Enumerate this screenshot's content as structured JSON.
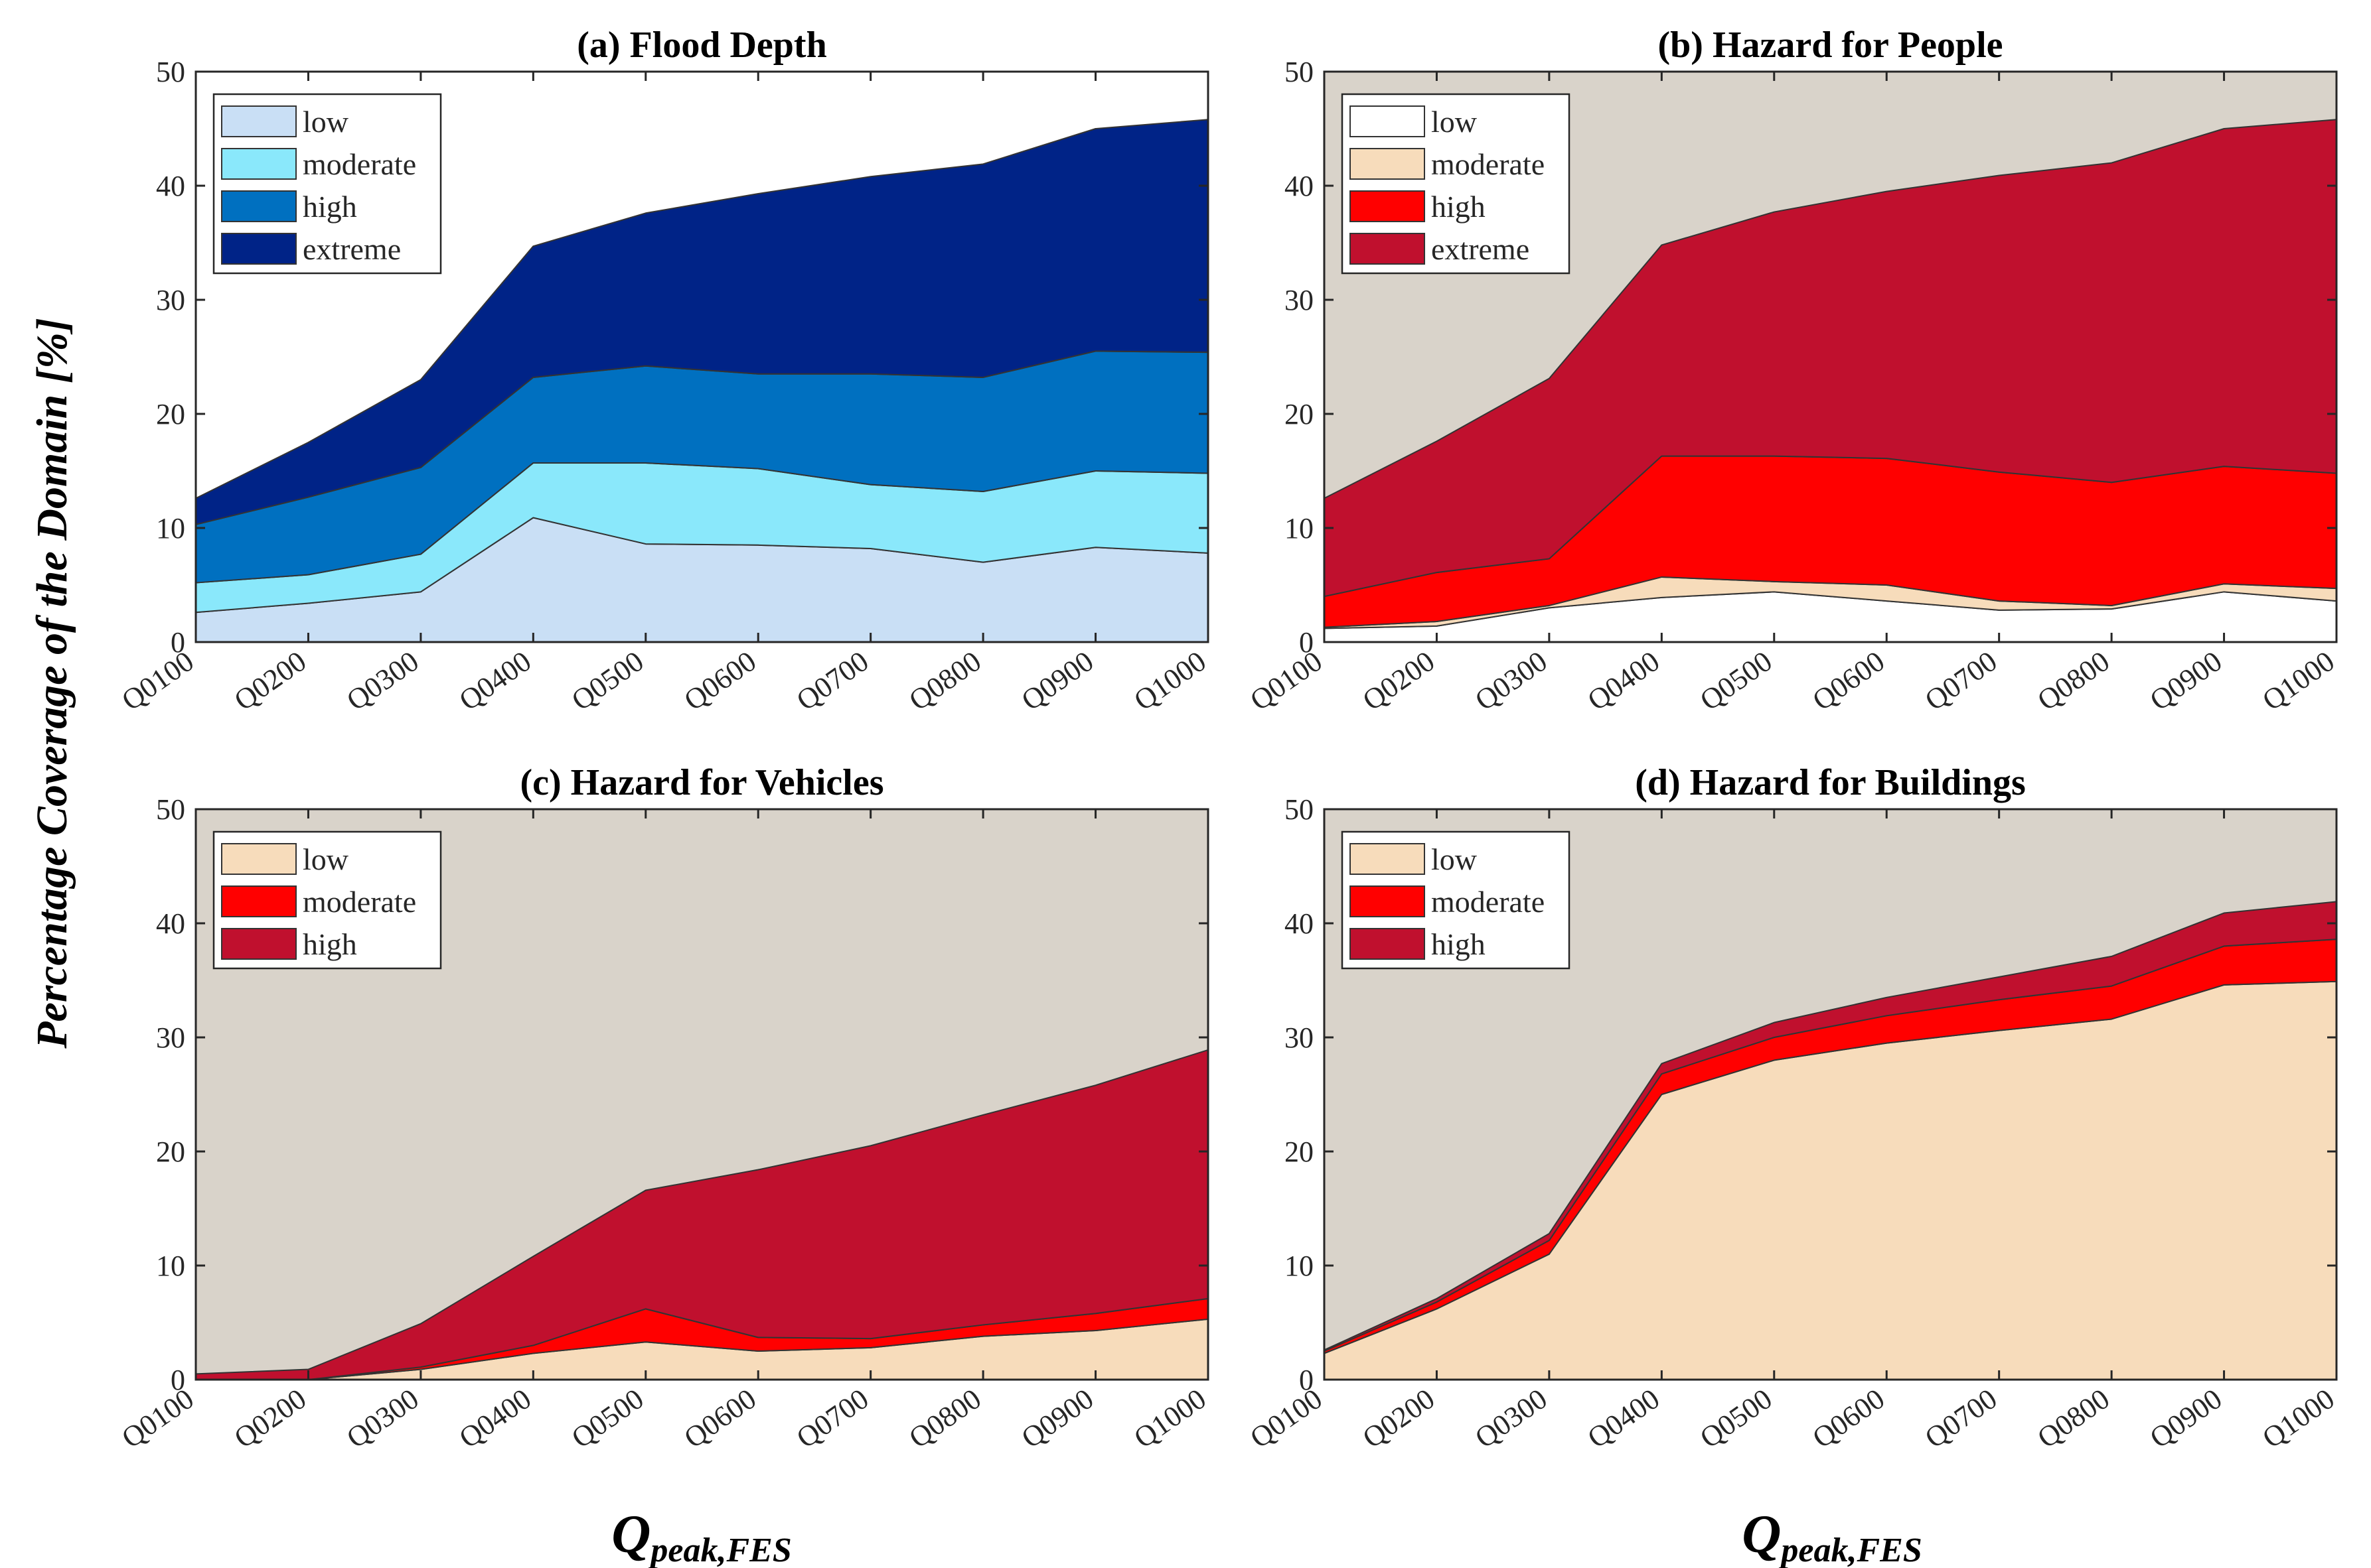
{
  "figure": {
    "ylabel": "Percentage Coverage of the Domain [%]",
    "xlabel_main": "Q",
    "xlabel_sub": "peak,FES"
  },
  "chart_data": [
    {
      "type": "area",
      "title": "(a) Flood Depth",
      "categories": [
        "Q0100",
        "Q0200",
        "Q0300",
        "Q0400",
        "Q0500",
        "Q0600",
        "Q0700",
        "Q0800",
        "Q0900",
        "Q1000"
      ],
      "ylim": [
        0,
        50
      ],
      "yticks": [
        0,
        10,
        20,
        30,
        40,
        50
      ],
      "background": "#ffffff",
      "legend_position": "top-left",
      "series": [
        {
          "name": "low",
          "color": "#c9dff5",
          "values": [
            2.6,
            3.4,
            4.4,
            10.9,
            8.6,
            8.5,
            8.2,
            7.0,
            8.3,
            7.8
          ]
        },
        {
          "name": "moderate",
          "color": "#8ae8fb",
          "values": [
            2.6,
            2.5,
            3.3,
            4.8,
            7.1,
            6.7,
            5.6,
            6.2,
            6.7,
            7.0
          ]
        },
        {
          "name": "high",
          "color": "#0070c0",
          "values": [
            5.1,
            6.8,
            7.6,
            7.5,
            8.5,
            8.3,
            9.7,
            10.0,
            10.5,
            10.6
          ]
        },
        {
          "name": "extreme",
          "color": "#002387",
          "values": [
            2.3,
            4.8,
            7.7,
            11.5,
            13.4,
            15.8,
            17.3,
            18.7,
            19.5,
            20.4
          ]
        }
      ]
    },
    {
      "type": "area",
      "title": "(b) Hazard for People",
      "categories": [
        "Q0100",
        "Q0200",
        "Q0300",
        "Q0400",
        "Q0500",
        "Q0600",
        "Q0700",
        "Q0800",
        "Q0900",
        "Q1000"
      ],
      "ylim": [
        0,
        50
      ],
      "yticks": [
        0,
        10,
        20,
        30,
        40,
        50
      ],
      "background": "#d9d3ca",
      "legend_position": "top-left",
      "series": [
        {
          "name": "low",
          "color": "#ffffff",
          "values": [
            1.2,
            1.4,
            3.0,
            3.9,
            4.4,
            3.6,
            2.8,
            2.9,
            4.4,
            3.6
          ]
        },
        {
          "name": "moderate",
          "color": "#f7dcbb",
          "values": [
            0.1,
            0.4,
            0.2,
            1.8,
            0.9,
            1.4,
            0.8,
            0.3,
            0.7,
            1.1
          ]
        },
        {
          "name": "high",
          "color": "#ff0000",
          "values": [
            2.7,
            4.3,
            4.1,
            10.6,
            11.0,
            11.1,
            11.3,
            10.8,
            10.3,
            10.1
          ]
        },
        {
          "name": "extreme",
          "color": "#c0102e",
          "values": [
            8.6,
            11.5,
            15.8,
            18.5,
            21.4,
            23.4,
            26.0,
            28.0,
            29.6,
            31.0
          ]
        }
      ]
    },
    {
      "type": "area",
      "title": "(c) Hazard for Vehicles",
      "categories": [
        "Q0100",
        "Q0200",
        "Q0300",
        "Q0400",
        "Q0500",
        "Q0600",
        "Q0700",
        "Q0800",
        "Q0900",
        "Q1000"
      ],
      "ylim": [
        0,
        50
      ],
      "yticks": [
        0,
        10,
        20,
        30,
        40,
        50
      ],
      "background": "#d9d3ca",
      "legend_position": "top-left",
      "series": [
        {
          "name": "low",
          "color": "#f7dcbb",
          "values": [
            0.0,
            0.0,
            0.9,
            2.3,
            3.3,
            2.5,
            2.8,
            3.8,
            4.3,
            5.3
          ]
        },
        {
          "name": "moderate",
          "color": "#ff0000",
          "values": [
            0.0,
            0.0,
            0.2,
            0.7,
            2.9,
            1.2,
            0.8,
            1.0,
            1.5,
            1.8
          ]
        },
        {
          "name": "high",
          "color": "#c0102e",
          "values": [
            0.5,
            0.9,
            3.8,
            7.8,
            10.4,
            14.7,
            16.9,
            18.4,
            20.0,
            21.8
          ]
        }
      ]
    },
    {
      "type": "area",
      "title": "(d) Hazard for Buildings",
      "categories": [
        "Q0100",
        "Q0200",
        "Q0300",
        "Q0400",
        "Q0500",
        "Q0600",
        "Q0700",
        "Q0800",
        "Q0900",
        "Q1000"
      ],
      "ylim": [
        0,
        50
      ],
      "yticks": [
        0,
        10,
        20,
        30,
        40,
        50
      ],
      "background": "#d9d3ca",
      "legend_position": "top-left",
      "series": [
        {
          "name": "low",
          "color": "#f7dcbb",
          "values": [
            2.3,
            6.2,
            11.0,
            25.0,
            28.0,
            29.5,
            30.6,
            31.6,
            34.6,
            34.9
          ]
        },
        {
          "name": "moderate",
          "color": "#ff0000",
          "values": [
            0.2,
            0.6,
            1.2,
            1.8,
            2.0,
            2.4,
            2.7,
            2.9,
            3.4,
            3.7
          ]
        },
        {
          "name": "high",
          "color": "#c0102e",
          "values": [
            0.1,
            0.3,
            0.6,
            0.9,
            1.3,
            1.6,
            2.0,
            2.6,
            2.9,
            3.3
          ]
        }
      ]
    }
  ]
}
